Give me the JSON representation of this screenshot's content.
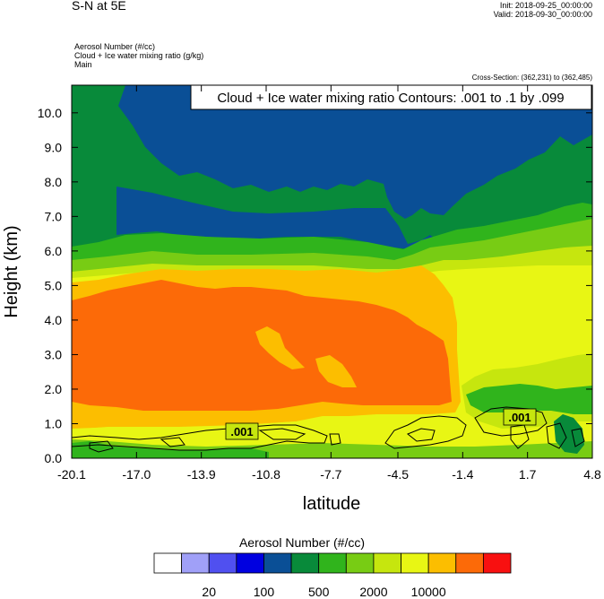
{
  "header": {
    "title": "S-N at 5E",
    "init": "Init: 2018-09-25_00:00:00",
    "valid": "Valid: 2018-09-30_00:00:00",
    "field1": "Aerosol Number   (#/cc)",
    "field2": "Cloud + Ice water mixing ratio   (g/kg)",
    "field3": "Main",
    "cross_section": "Cross-Section: (362,231) to (362,485)"
  },
  "chart_data": {
    "type": "heatmap",
    "title": "S-N at 5E",
    "xlabel": "latitude",
    "ylabel": "Height (km)",
    "xlim": [
      -20.1,
      4.8
    ],
    "ylim": [
      0.0,
      10.8
    ],
    "x_ticks": [
      "-20.1",
      "-17.0",
      "-13.9",
      "-10.8",
      "-7.7",
      "-4.5",
      "-1.4",
      "1.7",
      "4.8"
    ],
    "y_ticks": [
      "0.0",
      "1.0",
      "2.0",
      "3.0",
      "4.0",
      "5.0",
      "6.0",
      "7.0",
      "8.0",
      "9.0",
      "10.0"
    ],
    "contour_title": "Cloud + Ice water mixing ratio Contours: .001 to .1 by .099",
    "contour_labels": [
      ".001",
      ".001"
    ],
    "colorbar": {
      "title": "Aerosol Number  (#/cc)",
      "colors": [
        "#ffffff",
        "#a0a0f8",
        "#5050f0",
        "#0000e0",
        "#0a4f96",
        "#088a3a",
        "#30b41c",
        "#78cc14",
        "#c6e60e",
        "#e8f614",
        "#fcbe00",
        "#fc6a08",
        "#f81010"
      ],
      "tick_labels": [
        "20",
        "100",
        "500",
        "2000",
        "10000"
      ]
    },
    "colors": {
      "blue_top": "#0a4f96",
      "green_dark": "#088a3a",
      "green_mid": "#30b41c",
      "green_light": "#78cc14",
      "yellow_green": "#c6e60e",
      "yellow": "#e8f614",
      "orange_yellow": "#fcbe00",
      "orange": "#fc6a08"
    }
  }
}
